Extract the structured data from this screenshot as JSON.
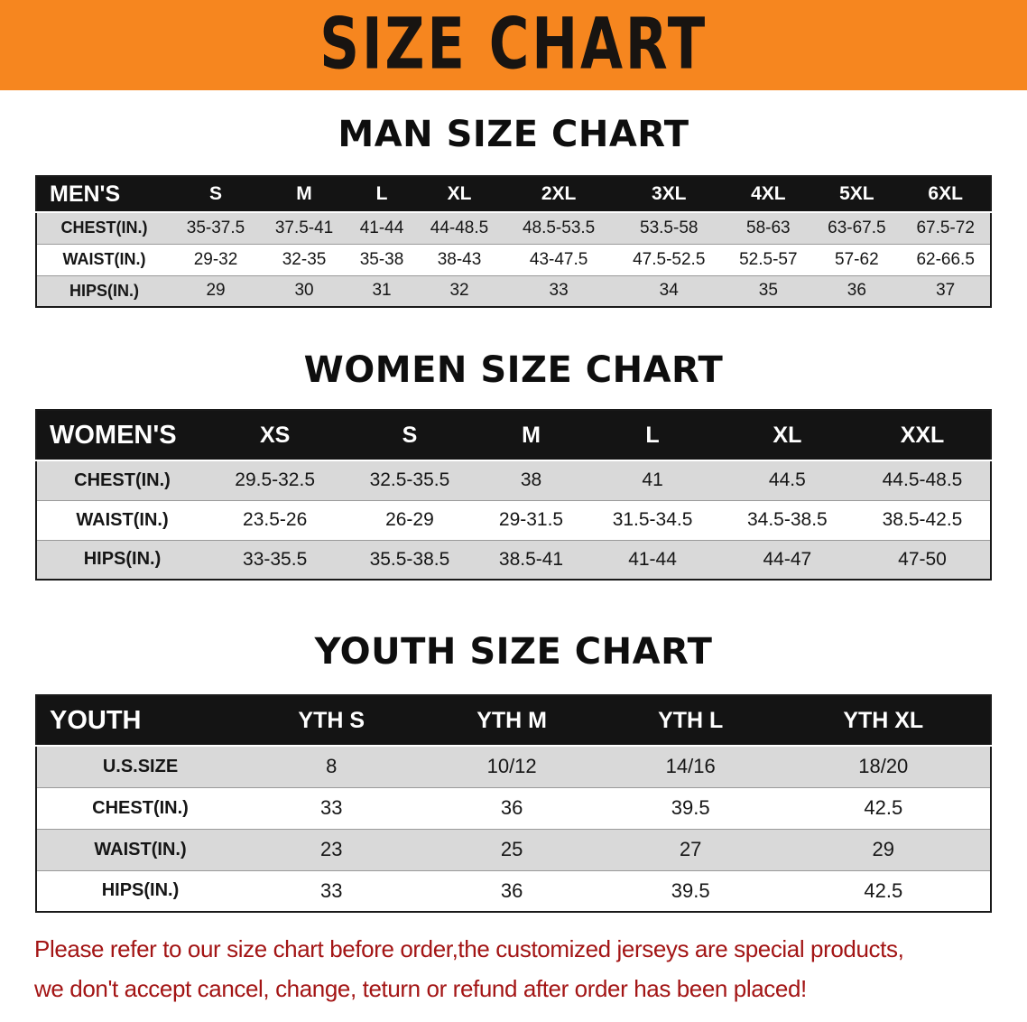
{
  "banner": {
    "title": "SIZE CHART",
    "bg_color": "#f6861f",
    "text_color": "#181411"
  },
  "colors": {
    "table_header_bg": "#141414",
    "table_header_text": "#ffffff",
    "row_stripe": "#d9d9d9",
    "note_text": "#a31515"
  },
  "sections": [
    {
      "heading": "MAN SIZE CHART",
      "table": {
        "label_header": "MEN'S",
        "columns": [
          "S",
          "M",
          "L",
          "XL",
          "2XL",
          "3XL",
          "4XL",
          "5XL",
          "6XL"
        ],
        "rows": [
          {
            "label": "CHEST(IN.)",
            "values": [
              "35-37.5",
              "37.5-41",
              "41-44",
              "44-48.5",
              "48.5-53.5",
              "53.5-58",
              "58-63",
              "63-67.5",
              "67.5-72"
            ]
          },
          {
            "label": "WAIST(IN.)",
            "values": [
              "29-32",
              "32-35",
              "35-38",
              "38-43",
              "43-47.5",
              "47.5-52.5",
              "52.5-57",
              "57-62",
              "62-66.5"
            ]
          },
          {
            "label": "HIPS(IN.)",
            "values": [
              "29",
              "30",
              "31",
              "32",
              "33",
              "34",
              "35",
              "36",
              "37"
            ]
          }
        ]
      }
    },
    {
      "heading": "WOMEN SIZE CHART",
      "table": {
        "label_header": "WOMEN'S",
        "columns": [
          "XS",
          "S",
          "M",
          "L",
          "XL",
          "XXL"
        ],
        "rows": [
          {
            "label": "CHEST(IN.)",
            "values": [
              "29.5-32.5",
              "32.5-35.5",
              "38",
              "41",
              "44.5",
              "44.5-48.5"
            ]
          },
          {
            "label": "WAIST(IN.)",
            "values": [
              "23.5-26",
              "26-29",
              "29-31.5",
              "31.5-34.5",
              "34.5-38.5",
              "38.5-42.5"
            ]
          },
          {
            "label": "HIPS(IN.)",
            "values": [
              "33-35.5",
              "35.5-38.5",
              "38.5-41",
              "41-44",
              "44-47",
              "47-50"
            ]
          }
        ]
      }
    },
    {
      "heading": "YOUTH SIZE CHART",
      "table": {
        "label_header": "YOUTH",
        "columns": [
          "YTH S",
          "YTH M",
          "YTH L",
          "YTH XL"
        ],
        "rows": [
          {
            "label": "U.S.SIZE",
            "values": [
              "8",
              "10/12",
              "14/16",
              "18/20"
            ]
          },
          {
            "label": "CHEST(IN.)",
            "values": [
              "33",
              "36",
              "39.5",
              "42.5"
            ]
          },
          {
            "label": "WAIST(IN.)",
            "values": [
              "23",
              "25",
              "27",
              "29"
            ]
          },
          {
            "label": "HIPS(IN.)",
            "values": [
              "33",
              "36",
              "39.5",
              "42.5"
            ]
          }
        ]
      }
    }
  ],
  "footer_note": {
    "line1": "Please refer to our size chart before order,the customized jerseys are special products,",
    "line2": "we don't accept cancel, change, teturn or refund after order has been placed!"
  }
}
